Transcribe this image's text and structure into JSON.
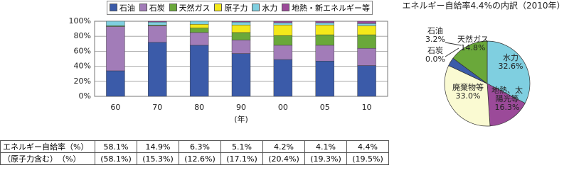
{
  "chart_data": [
    {
      "type": "bar",
      "stacked": true,
      "categories": [
        "60",
        "70",
        "80",
        "90",
        "00",
        "05",
        "10"
      ],
      "x_label": "(年)",
      "series": [
        {
          "name": "石油",
          "color": "#3b5ba9",
          "values": [
            34,
            72,
            68,
            57,
            49,
            47,
            41
          ]
        },
        {
          "name": "石炭",
          "color": "#a27cb8",
          "values": [
            59,
            22,
            17,
            18,
            19,
            21,
            23
          ]
        },
        {
          "name": "天然ガス",
          "color": "#6aa83a",
          "values": [
            1,
            1,
            6,
            10,
            13,
            14,
            18
          ]
        },
        {
          "name": "原子力",
          "color": "#f4e81a",
          "values": [
            0,
            0,
            5,
            10,
            14,
            13,
            12
          ]
        },
        {
          "name": "水力",
          "color": "#7fcfe0",
          "values": [
            6,
            4,
            4,
            4,
            3,
            3,
            3
          ]
        },
        {
          "name": "地熱・新エネルギー等",
          "color": "#9b4a99",
          "values": [
            0,
            1,
            0,
            1,
            2,
            2,
            3
          ]
        }
      ],
      "ylim": [
        0,
        100
      ],
      "yticks": [
        {
          "value": 0,
          "label": "0%"
        },
        {
          "value": 20,
          "label": "20%"
        },
        {
          "value": 40,
          "label": "40%"
        },
        {
          "value": 60,
          "label": "60%"
        },
        {
          "value": 80,
          "label": "80%"
        },
        {
          "value": 100,
          "label": "100%"
        }
      ],
      "grid": true
    },
    {
      "type": "pie",
      "title": "エネルギー自給率4.4%の内訳（2010年）",
      "categories": [
        "水力",
        "地熱、太陽光等",
        "廃棄物等",
        "石炭",
        "石油",
        "天然ガス"
      ],
      "values": [
        32.6,
        16.3,
        33.0,
        0.0,
        3.2,
        14.8
      ],
      "value_labels": [
        "32.6%",
        "16.3%",
        "33.0%",
        "0.0%",
        "3.2%",
        "14.8%"
      ],
      "colors": [
        "#7fcfe0",
        "#9b4a99",
        "#fafad2",
        "#a27cb8",
        "#3b5ba9",
        "#6aa83a"
      ]
    }
  ],
  "table": {
    "rows": [
      [
        "エネルギー自給率（%）",
        "58.1%",
        "14.9%",
        "6.3%",
        "5.1%",
        "4.2%",
        "4.1%",
        "4.4%"
      ],
      [
        "（原子力含む）　（%）",
        "(58.1%)",
        "(15.3%)",
        "(12.6%)",
        "(17.1%)",
        "(20.4%)",
        "(19.3%)",
        "(19.5%)"
      ]
    ]
  }
}
